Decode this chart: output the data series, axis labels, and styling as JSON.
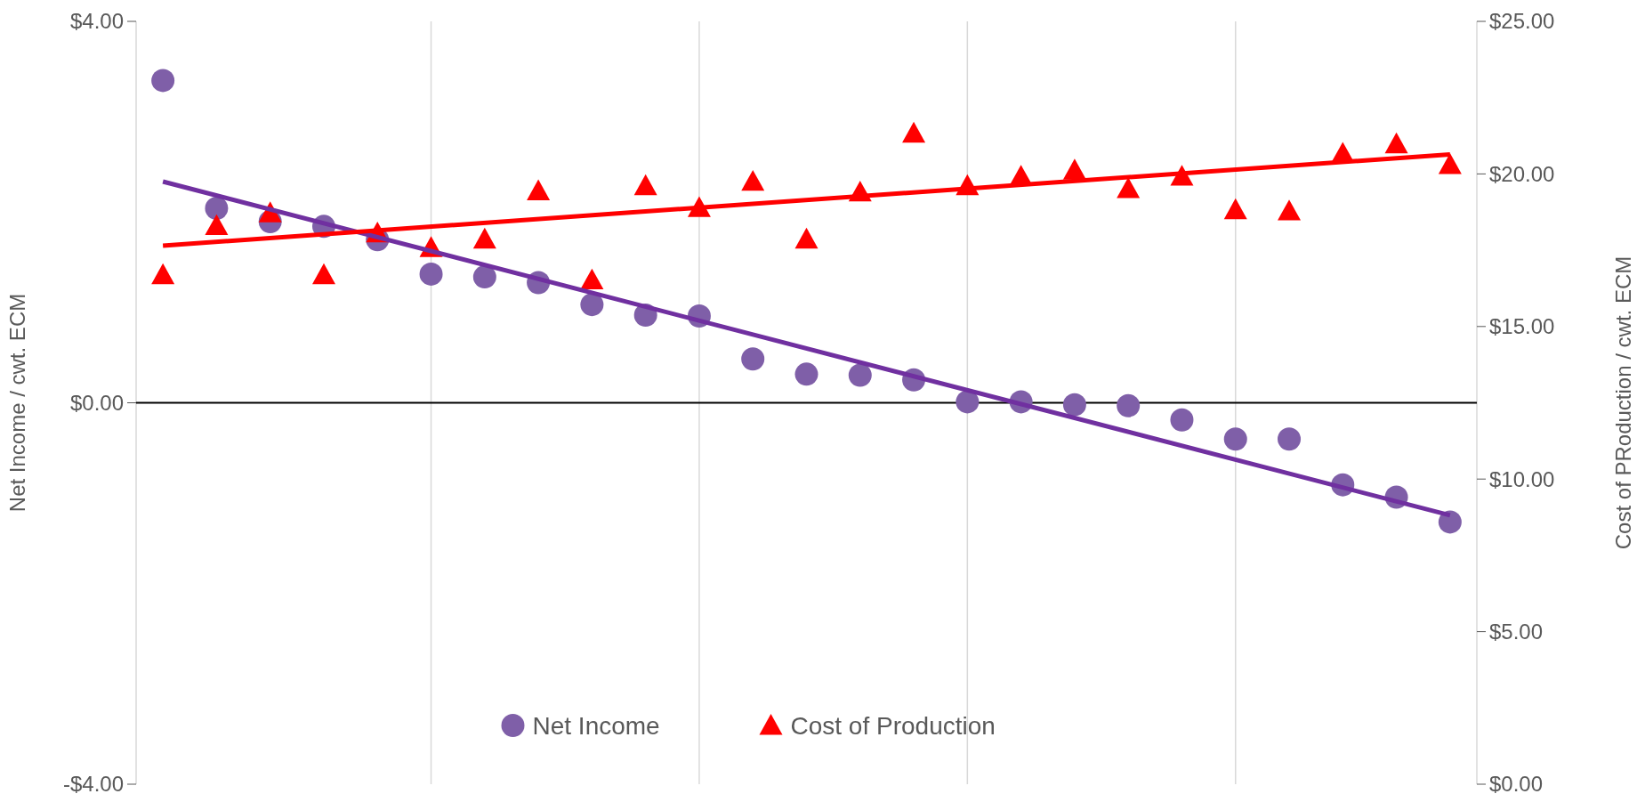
{
  "chart_data": {
    "type": "scatter",
    "ylabel": "Net Income / cwt. ECM",
    "y2label": "Cost of PRoduction / cwt. ECM",
    "categories": [
      null,
      null,
      null,
      null,
      null,
      null,
      null,
      null,
      null,
      null,
      null,
      null,
      null,
      null,
      null,
      null,
      null,
      null,
      null,
      null,
      null,
      null,
      null,
      null,
      null
    ],
    "ylim": [
      -4,
      4
    ],
    "yticks": [
      {
        "value": -4,
        "label": "-$4.00"
      },
      {
        "value": 0,
        "label": "$0.00"
      },
      {
        "value": 4,
        "label": "$4.00"
      }
    ],
    "y2lim": [
      0,
      25
    ],
    "y2ticks": [
      {
        "value": 0,
        "label": "$0.00"
      },
      {
        "value": 5,
        "label": "$5.00"
      },
      {
        "value": 10,
        "label": "$10.00"
      },
      {
        "value": 15,
        "label": "$15.00"
      },
      {
        "value": 20,
        "label": "$20.00"
      },
      {
        "value": 25,
        "label": "$25.00"
      }
    ],
    "grid": "x",
    "legend": "bottom",
    "series": [
      {
        "name": "Net Income",
        "marker": "circle",
        "color": "#7f5fa8",
        "values": [
          3.38,
          2.04,
          1.9,
          1.85,
          1.71,
          1.35,
          1.32,
          1.26,
          1.03,
          0.92,
          0.91,
          0.46,
          0.3,
          0.29,
          0.24,
          0.01,
          0.01,
          -0.02,
          -0.03,
          -0.18,
          -0.38,
          -0.38,
          -0.86,
          -0.99,
          -1.25
        ]
      },
      {
        "name": "Cost of Production",
        "marker": "triangle",
        "axis": "y2",
        "color": "#ff0000",
        "values": [
          16.69,
          18.3,
          18.72,
          16.69,
          18.06,
          17.58,
          17.86,
          19.44,
          16.52,
          19.61,
          18.89,
          19.75,
          17.86,
          19.4,
          21.33,
          19.61,
          19.92,
          20.12,
          19.51,
          19.92,
          18.82,
          18.78,
          20.67,
          20.98,
          20.3
        ]
      },
      {
        "type": "line",
        "color": "#7030a0",
        "values": [
          2.32,
          null,
          null,
          null,
          null,
          null,
          null,
          null,
          null,
          null,
          null,
          null,
          null,
          null,
          null,
          null,
          null,
          null,
          null,
          null,
          null,
          null,
          null,
          null,
          -1.18
        ]
      },
      {
        "type": "line",
        "axis": "y2",
        "color": "#ff0000",
        "values": [
          17.65,
          null,
          null,
          null,
          null,
          null,
          null,
          null,
          null,
          null,
          null,
          null,
          null,
          null,
          null,
          null,
          null,
          null,
          null,
          null,
          null,
          null,
          null,
          null,
          20.64
        ]
      }
    ]
  }
}
